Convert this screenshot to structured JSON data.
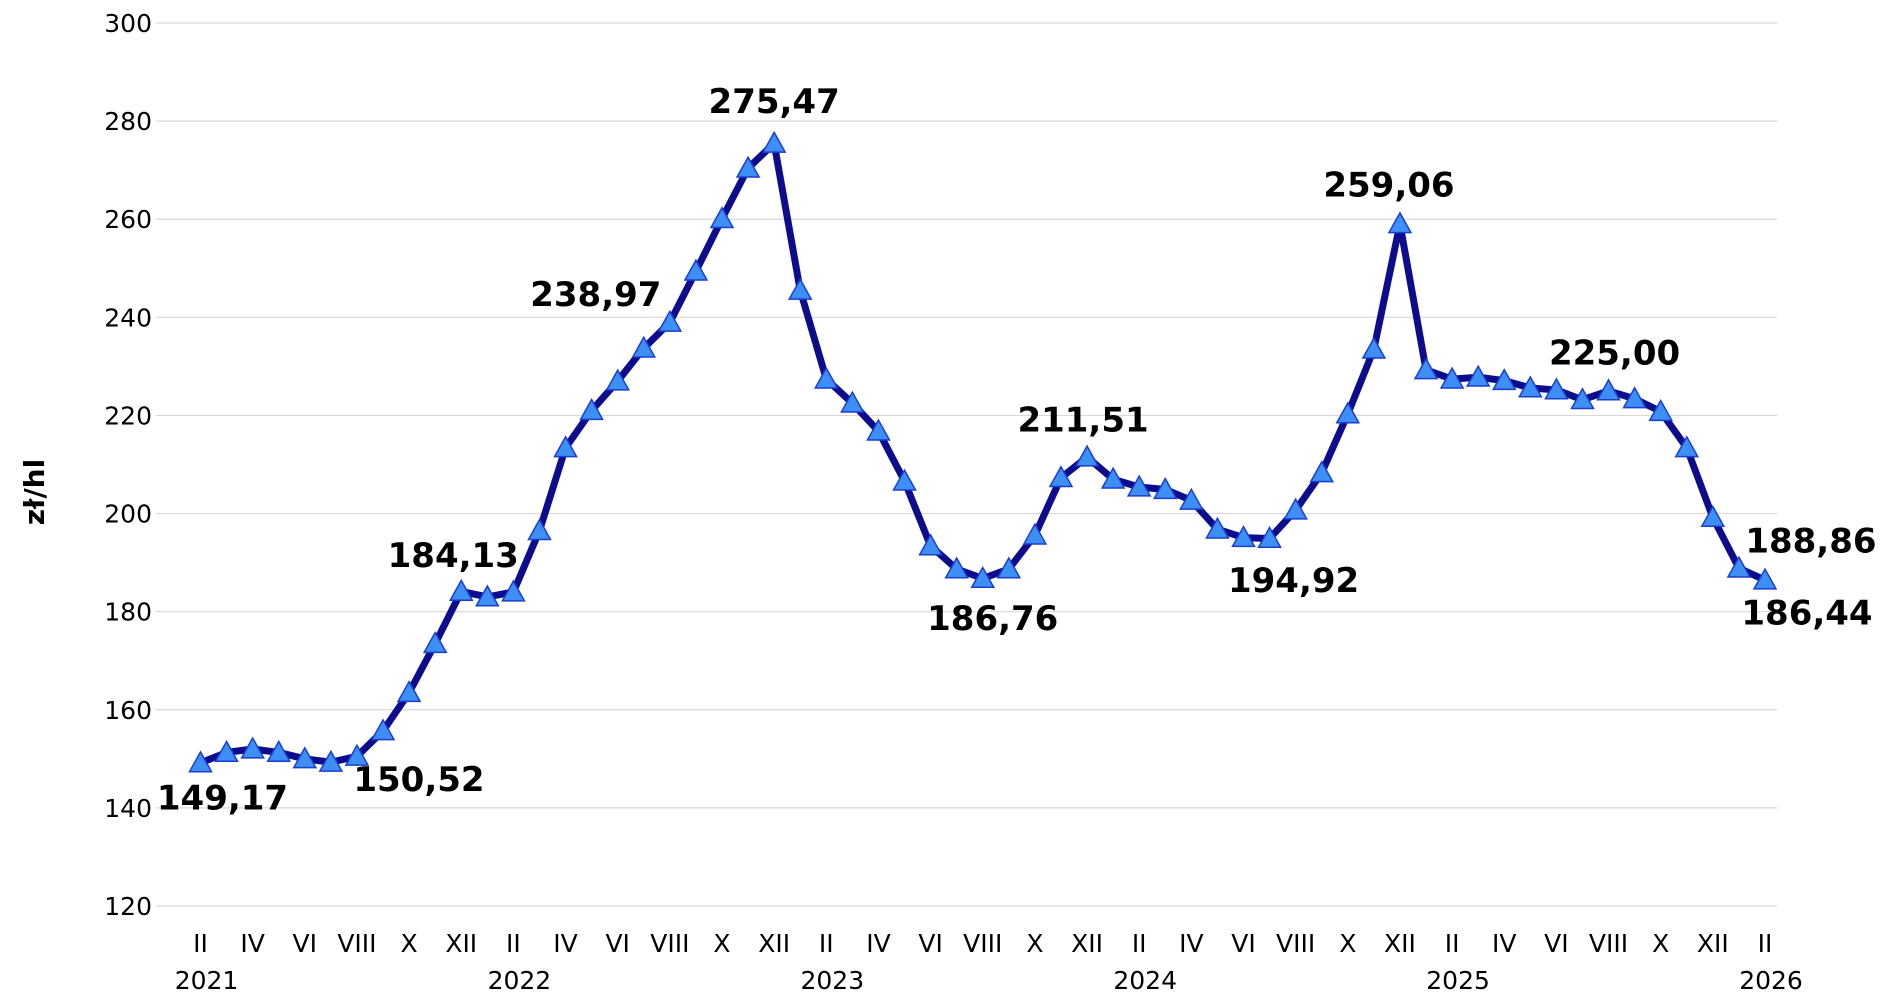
{
  "chart_data": {
    "type": "line",
    "y_label": "zł/hl",
    "categories": [
      "II",
      null,
      "IV",
      null,
      "VI",
      null,
      "VIII",
      null,
      "X",
      null,
      "XII",
      null,
      "II",
      null,
      "IV",
      null,
      "VI",
      null,
      "VIII",
      null,
      "X",
      null,
      "XII",
      null,
      "II",
      null,
      "IV",
      null,
      "VI",
      null,
      "VIII",
      null,
      "X",
      null,
      "XII",
      null,
      "II",
      null,
      "IV",
      null,
      "VI",
      null,
      "VIII",
      null,
      "X",
      null,
      "XII",
      null,
      "II",
      null,
      "IV",
      null,
      "VI",
      null,
      "VIII",
      null,
      "X",
      null,
      "XII",
      null,
      "II"
    ],
    "years": [
      "2021",
      null,
      null,
      null,
      null,
      null,
      null,
      null,
      null,
      null,
      null,
      null,
      "2022",
      null,
      null,
      null,
      null,
      null,
      null,
      null,
      null,
      null,
      null,
      null,
      "2023",
      null,
      null,
      null,
      null,
      null,
      null,
      null,
      null,
      null,
      null,
      null,
      "2024",
      null,
      null,
      null,
      null,
      null,
      null,
      null,
      null,
      null,
      null,
      null,
      "2025",
      null,
      null,
      null,
      null,
      null,
      null,
      null,
      null,
      null,
      null,
      null,
      "2026"
    ],
    "series": [
      {
        "name": "zł/hl",
        "color": "#0c0c8c",
        "marker_color": "#3d8ef5",
        "values": [
          149.17,
          151.3,
          152,
          151.3,
          150,
          149.3,
          150.52,
          155.7,
          163.5,
          173.5,
          184.13,
          183,
          184,
          196.5,
          213.4,
          221,
          227,
          233.7,
          238.97,
          249.4,
          260.1,
          270.4,
          275.47,
          245.5,
          227.4,
          222.5,
          216.8,
          206.6,
          193.4,
          188.7,
          186.76,
          188.7,
          195.6,
          207.3,
          211.51,
          207,
          205.4,
          204.9,
          202.7,
          196.8,
          195.1,
          194.92,
          200.7,
          208.3,
          220.3,
          233.5,
          259.06,
          229.3,
          227.4,
          227.8,
          227.1,
          225.6,
          225.2,
          223.2,
          225.0,
          223.4,
          220.8,
          213.4,
          199.2,
          188.86,
          186.44
        ],
        "value_labels": [
          "149,17",
          null,
          null,
          null,
          null,
          null,
          "150,52",
          null,
          null,
          null,
          "184,13",
          null,
          null,
          null,
          null,
          null,
          null,
          null,
          "238,97",
          null,
          null,
          null,
          "275,47",
          null,
          null,
          null,
          null,
          null,
          null,
          null,
          "186,76",
          null,
          null,
          null,
          "211,51",
          null,
          null,
          null,
          null,
          null,
          null,
          "194,92",
          null,
          null,
          null,
          null,
          "259,06",
          null,
          null,
          null,
          null,
          null,
          null,
          null,
          "225,00",
          null,
          null,
          null,
          null,
          "188,86",
          "186,44"
        ]
      }
    ],
    "ylim": [
      120,
      300
    ],
    "yticks": [
      120,
      140,
      160,
      180,
      200,
      220,
      240,
      260,
      280,
      300
    ],
    "grid": true
  }
}
